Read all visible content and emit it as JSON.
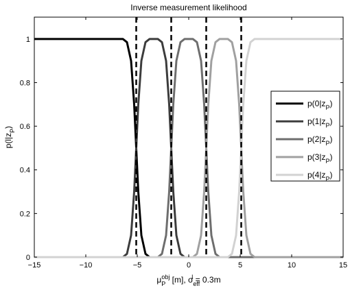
{
  "chart_data": {
    "type": "line",
    "title": "Inverse measurement likelihood",
    "xlabel": {
      "base": "μ",
      "base_sub": "P",
      "base_sup": "obj",
      "unit": " [m], ",
      "sigma": "σ",
      "sigma_sub": "eff",
      "sigma_sup": "l",
      "tail": " = 0.3m"
    },
    "ylabel": {
      "main": "p(l|z",
      "sub": "P",
      "close": ")"
    },
    "xlim": [
      -15,
      15
    ],
    "ylim": [
      0,
      1.1
    ],
    "xticks": [
      -15,
      -10,
      -5,
      0,
      5,
      10,
      15
    ],
    "xtick_labels": [
      "−15",
      "−10",
      "−5",
      "0",
      "5",
      "10",
      "15"
    ],
    "yticks": [
      0,
      0.2,
      0.4,
      0.6,
      0.8,
      1
    ],
    "ytick_labels": [
      "0",
      "0.2",
      "0.4",
      "0.6",
      "0.8",
      "1"
    ],
    "grid": false,
    "legend_position": "right",
    "boundaries": [
      -5.1,
      -1.7,
      1.7,
      5.1
    ],
    "series": [
      {
        "name": "p(0|z",
        "name_sub": "P",
        "name_close": ")",
        "color": "#000000",
        "x": [
          -15,
          -6.4,
          -6.0,
          -5.6,
          -5.3,
          -5.1,
          -4.9,
          -4.6,
          -4.2,
          -3.8,
          15
        ],
        "y": [
          1,
          1,
          0.985,
          0.9,
          0.7,
          0.5,
          0.3,
          0.1,
          0.015,
          0,
          0
        ]
      },
      {
        "name": "p(1|z",
        "name_sub": "P",
        "name_close": ")",
        "color": "#3c3c3c",
        "x": [
          -15,
          -6.4,
          -6.0,
          -5.6,
          -5.3,
          -5.1,
          -4.9,
          -4.6,
          -4.2,
          -3.8,
          -3.0,
          -2.6,
          -2.2,
          -1.9,
          -1.7,
          -1.5,
          -1.2,
          -0.8,
          -0.4,
          15
        ],
        "y": [
          0,
          0,
          0.015,
          0.1,
          0.3,
          0.5,
          0.7,
          0.9,
          0.985,
          1,
          1,
          0.985,
          0.9,
          0.7,
          0.5,
          0.3,
          0.1,
          0.015,
          0,
          0
        ]
      },
      {
        "name": "p(2|z",
        "name_sub": "P",
        "name_close": ")",
        "color": "#6e6e6e",
        "x": [
          -15,
          -3.0,
          -2.6,
          -2.2,
          -1.9,
          -1.7,
          -1.5,
          -1.2,
          -0.8,
          -0.4,
          0.4,
          0.8,
          1.2,
          1.5,
          1.7,
          1.9,
          2.2,
          2.6,
          3.0,
          15
        ],
        "y": [
          0,
          0,
          0.015,
          0.1,
          0.3,
          0.5,
          0.7,
          0.9,
          0.985,
          1,
          1,
          0.985,
          0.9,
          0.7,
          0.5,
          0.3,
          0.1,
          0.015,
          0,
          0
        ]
      },
      {
        "name": "p(3|z",
        "name_sub": "P",
        "name_close": ")",
        "color": "#a0a0a0",
        "x": [
          -15,
          0.4,
          0.8,
          1.2,
          1.5,
          1.7,
          1.9,
          2.2,
          2.6,
          3.0,
          3.8,
          4.2,
          4.6,
          4.9,
          5.1,
          5.3,
          5.6,
          6.0,
          6.4,
          15
        ],
        "y": [
          0,
          0,
          0.015,
          0.1,
          0.3,
          0.5,
          0.7,
          0.9,
          0.985,
          1,
          1,
          0.985,
          0.9,
          0.7,
          0.5,
          0.3,
          0.1,
          0.015,
          0,
          0
        ]
      },
      {
        "name": "p(4|z",
        "name_sub": "P",
        "name_close": ")",
        "color": "#d2d2d2",
        "x": [
          -15,
          3.8,
          4.2,
          4.6,
          4.9,
          5.1,
          5.3,
          5.6,
          6.0,
          6.4,
          15
        ],
        "y": [
          0,
          0,
          0.015,
          0.1,
          0.3,
          0.5,
          0.7,
          0.9,
          0.985,
          1,
          1
        ]
      }
    ]
  }
}
